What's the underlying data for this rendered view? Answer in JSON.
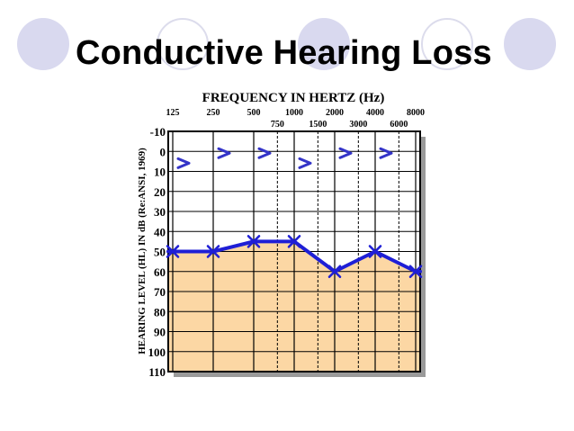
{
  "slide": {
    "title": "Conductive Hearing Loss"
  },
  "colors": {
    "loss_fill": "#fcd7a4",
    "line": "#1f1fd6",
    "masked_bc": "#3434c8",
    "grid": "#000000",
    "decor_circle": "#d9d9ef"
  },
  "chart_data": {
    "type": "line",
    "title": "FREQUENCY IN HERTZ (Hz)",
    "xlabel": "FREQUENCY IN HERTZ (Hz)",
    "ylabel": "HEARING LEVEL (HL) IN dB (Re:ANSI, 1969)",
    "x_ticks_major": [
      "125",
      "250",
      "500",
      "1000",
      "2000",
      "4000",
      "8000"
    ],
    "x_ticks_minor": [
      "750",
      "1500",
      "3000",
      "6000"
    ],
    "y_ticks": [
      "-10",
      "0",
      "10",
      "20",
      "30",
      "40",
      "50",
      "60",
      "70",
      "80",
      "90",
      "100",
      "110"
    ],
    "ylim": [
      -10,
      110
    ],
    "y_inverted": true,
    "series": [
      {
        "marker": "x",
        "x": [
          "125",
          "250",
          "500",
          "1000",
          "2000",
          "4000",
          "8000"
        ],
        "values": [
          50,
          50,
          45,
          45,
          60,
          50,
          60
        ]
      },
      {
        "marker": ">",
        "x": [
          "125",
          "250",
          "500",
          "1000",
          "2000",
          "4000"
        ],
        "values": [
          5,
          0,
          0,
          5,
          0,
          0
        ]
      }
    ],
    "shaded_region": "below air-conduction line",
    "grid": true
  }
}
